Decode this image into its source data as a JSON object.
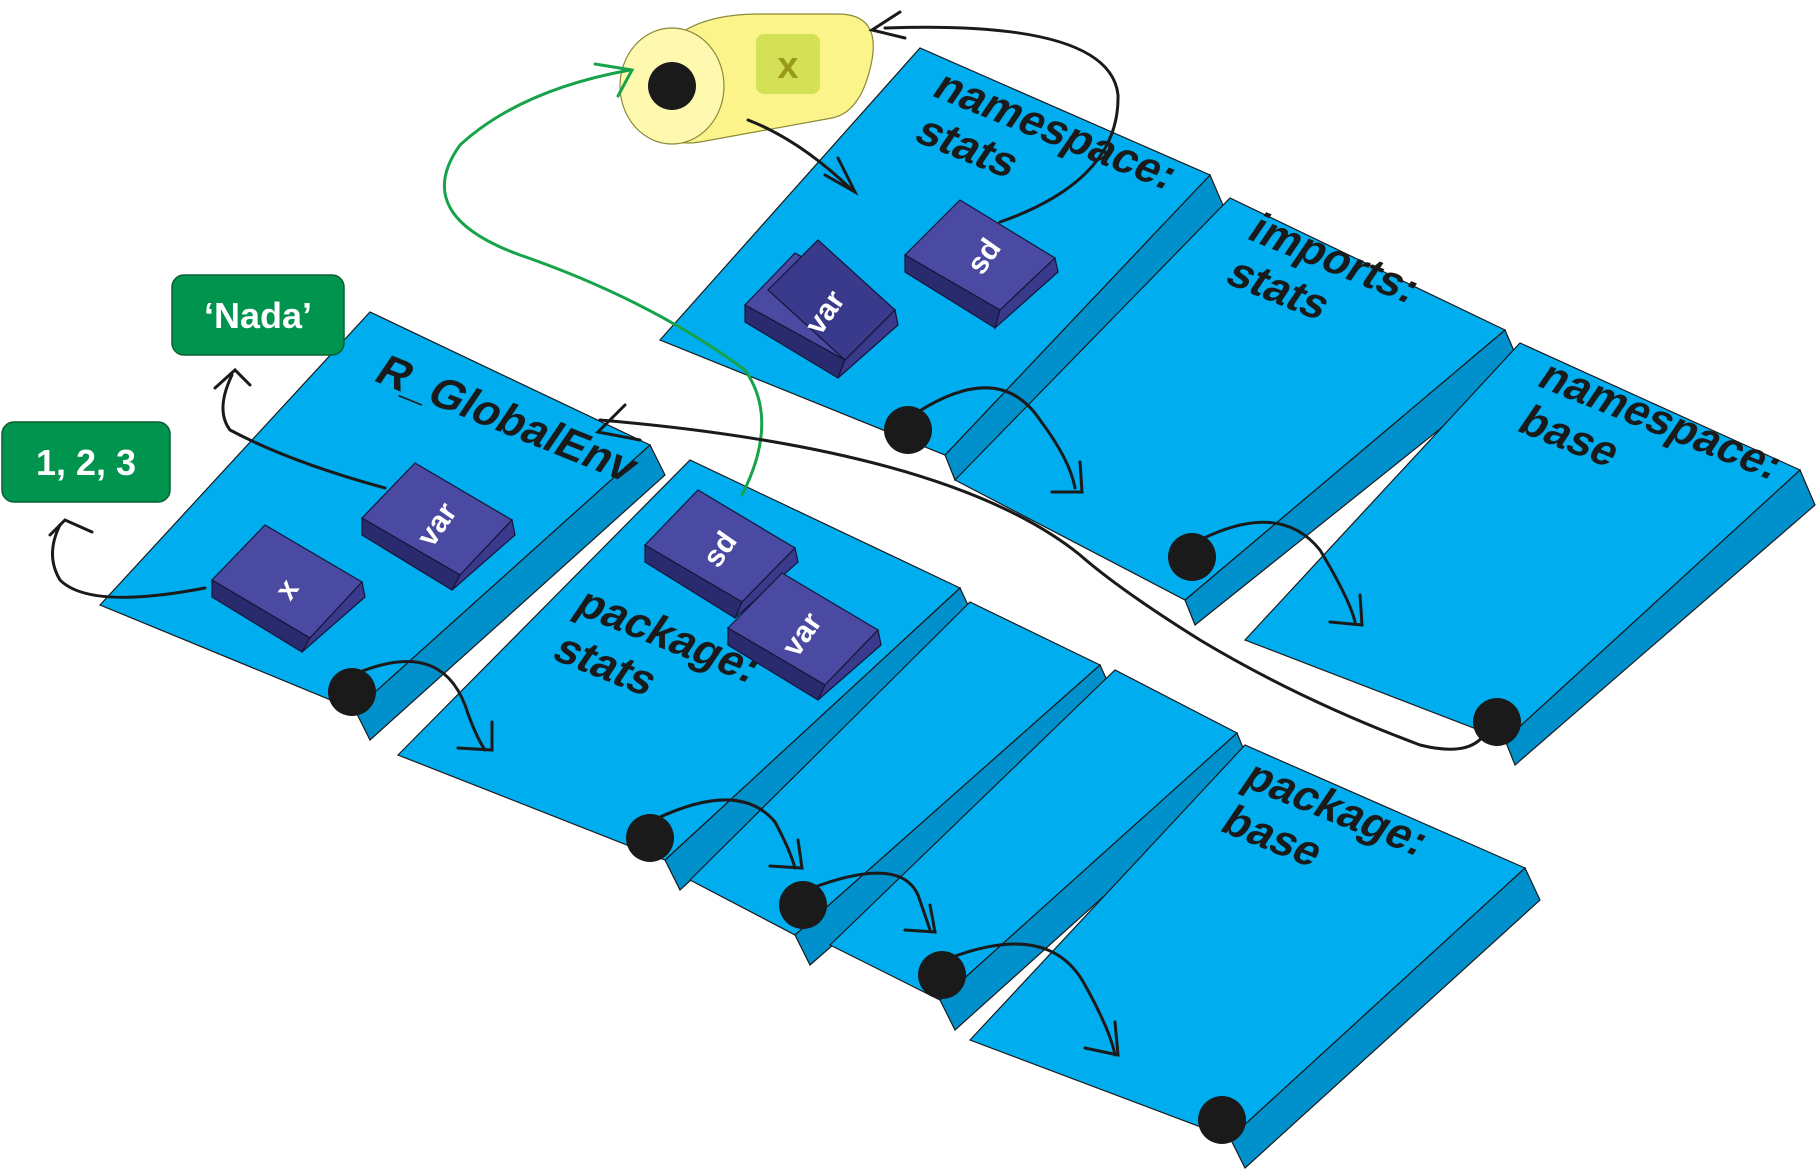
{
  "environments": {
    "global": {
      "label": "R_GlobalEnv"
    },
    "namespace_stats": {
      "label_line1": "namespace:",
      "label_line2": "stats"
    },
    "imports_stats": {
      "label_line1": "imports:",
      "label_line2": "stats"
    },
    "namespace_base": {
      "label_line1": "namespace:",
      "label_line2": "base"
    },
    "package_stats": {
      "label_line1": "package:",
      "label_line2": "stats"
    },
    "package_base": {
      "label_line1": "package:",
      "label_line2": "base"
    }
  },
  "symbols": {
    "global_x": "x",
    "global_var": "var",
    "ns_stats_var": "var",
    "ns_stats_sd": "sd",
    "pkg_stats_sd": "sd",
    "pkg_stats_var": "var"
  },
  "values": {
    "vector": "1, 2, 3",
    "string": "‘Nada’"
  },
  "closure": {
    "formal": "x"
  },
  "colors": {
    "panel": "#00aeef",
    "symbol": "#3a3a8c",
    "value": "#00944f",
    "closure": "#fbf48a",
    "link": "#1a1a1a",
    "function_link": "#16a34a"
  }
}
